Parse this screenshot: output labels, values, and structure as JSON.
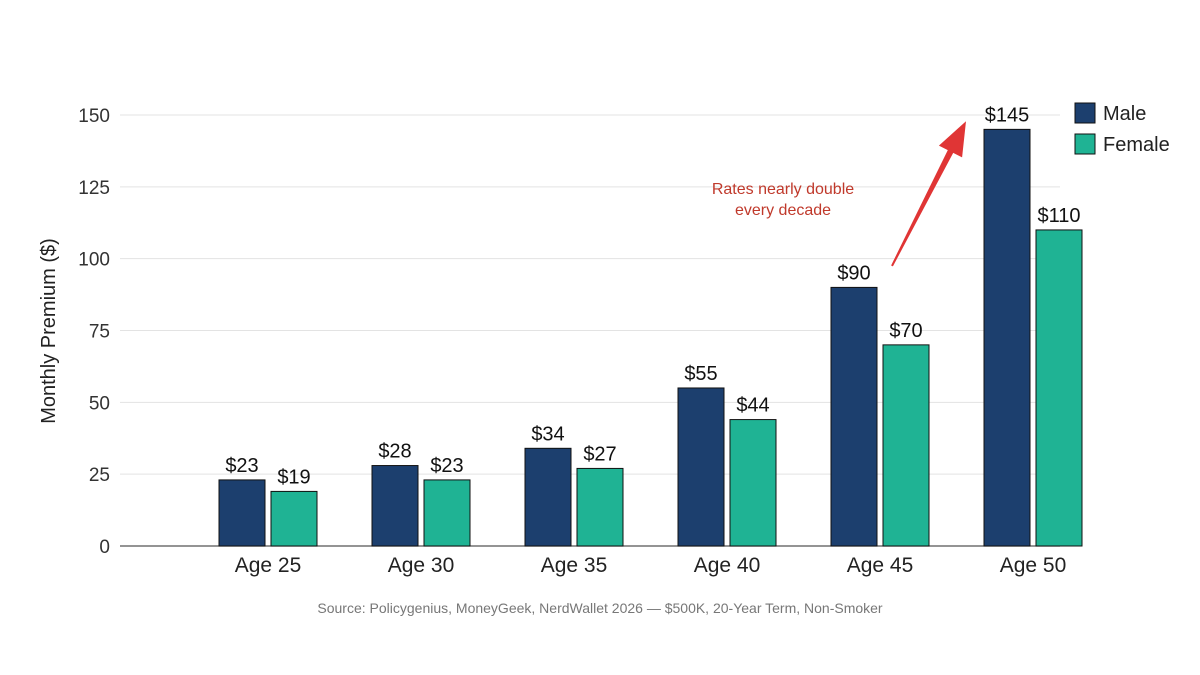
{
  "chart_data": {
    "type": "bar",
    "categories": [
      "Age 25",
      "Age 30",
      "Age 35",
      "Age 40",
      "Age 45",
      "Age 50"
    ],
    "series": [
      {
        "name": "Male",
        "color": "#1c3f6e",
        "values": [
          23,
          28,
          34,
          55,
          90,
          145
        ],
        "labels": [
          "$23",
          "$28",
          "$34",
          "$55",
          "$90",
          "$145"
        ]
      },
      {
        "name": "Female",
        "color": "#1fb394",
        "values": [
          19,
          23,
          27,
          44,
          70,
          110
        ],
        "labels": [
          "$19",
          "$23",
          "$27",
          "$44",
          "$70",
          "$110"
        ]
      }
    ],
    "ylabel": "Monthly Premium ($)",
    "ylim": [
      0,
      150
    ],
    "yticks": [
      0,
      25,
      50,
      75,
      100,
      125,
      150
    ],
    "grid": true,
    "legend_position": "top-right",
    "annotation": {
      "lines": [
        "Rates nearly double",
        "every decade"
      ],
      "color": "#e03535",
      "arrow_from": {
        "category": "Age 45",
        "value": 94
      },
      "arrow_to": {
        "category": "Age 50",
        "value": 144
      }
    },
    "source": "Source: Policygenius, MoneyGeek, NerdWallet 2026 — $500K, 20-Year Term, Non-Smoker"
  }
}
